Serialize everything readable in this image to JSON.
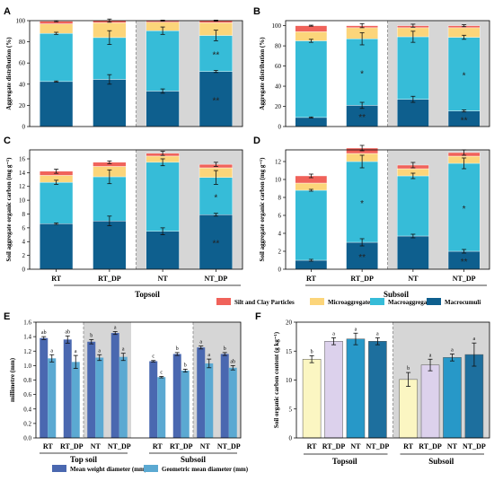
{
  "colors": {
    "silt_clay": "#f0625a",
    "micro": "#fcd57a",
    "macro": "#36bcd8",
    "macrocumuli": "#0e5f8e",
    "shade": "#d6d6d6",
    "mwd": "#4a68b0",
    "gmd": "#5ba9d2",
    "f_rt": "#fbf6c2",
    "f_rtdp": "#dcd1ec",
    "f_nt": "#2798c8",
    "f_ntdp": "#1d6f9e"
  },
  "legend": {
    "items": [
      "Silt and Clay Particles",
      "Microaggregates",
      "Macroaggregates",
      "Macrocumuli"
    ]
  },
  "chart_data": [
    {
      "panel": "A",
      "type": "bar",
      "stacked": true,
      "ylabel": "Aggregate distribution (%)",
      "ylim": [
        0,
        100
      ],
      "yticks": [
        "0",
        "20",
        "40",
        "60",
        "80",
        "100"
      ],
      "categories": [
        "RT",
        "RT_DP",
        "NT",
        "NT_DP"
      ],
      "series": [
        {
          "name": "Macrocumuli",
          "values": [
            42.5,
            44.5,
            33.5,
            52
          ]
        },
        {
          "name": "Macroaggregates",
          "values": [
            45.5,
            39.5,
            57,
            34
          ]
        },
        {
          "name": "Microaggregates",
          "values": [
            9,
            14,
            8,
            12
          ]
        },
        {
          "name": "Silt and Clay Particles",
          "values": [
            2.5,
            2,
            1.5,
            2
          ]
        }
      ],
      "error_tops": [
        {
          "series": "Macrocumuli",
          "err": [
            0.5,
            4.5,
            2.0,
            1.0
          ]
        },
        {
          "series": "Macroaggregates",
          "err": [
            1.0,
            6.5,
            3.5,
            5.0
          ]
        },
        {
          "series": "Silt and Clay Particles",
          "err": [
            0.5,
            1.5,
            0.5,
            0.5
          ]
        }
      ],
      "annotations": [
        {
          "category": "NT_DP",
          "series": "Macrocumuli",
          "text": "**"
        },
        {
          "category": "NT_DP",
          "series": "Macroaggregates",
          "text": "**"
        }
      ]
    },
    {
      "panel": "B",
      "type": "bar",
      "stacked": true,
      "ylabel": "Aggregate distribution (%)",
      "ylim": [
        0,
        105
      ],
      "yticks": [
        "0",
        "20",
        "40",
        "60",
        "80",
        "100"
      ],
      "categories": [
        "RT",
        "RT_DP",
        "NT",
        "NT_DP"
      ],
      "series": [
        {
          "name": "Macrocumuli",
          "values": [
            9,
            21,
            27,
            15.5
          ]
        },
        {
          "name": "Macroaggregates",
          "values": [
            76,
            66,
            62,
            73
          ]
        },
        {
          "name": "Microaggregates",
          "values": [
            9,
            11,
            9,
            9.5
          ]
        },
        {
          "name": "Silt and Clay Particles",
          "values": [
            6,
            2,
            2,
            2
          ]
        }
      ],
      "error_tops": [
        {
          "series": "Macrocumuli",
          "err": [
            0.5,
            3.0,
            3.0,
            1.0
          ]
        },
        {
          "series": "Macroaggregates",
          "err": [
            1.5,
            6.0,
            5.5,
            2.0
          ]
        },
        {
          "series": "Silt and Clay Particles",
          "err": [
            0.5,
            2.0,
            1.5,
            1.0
          ]
        }
      ],
      "annotations": [
        {
          "category": "RT_DP",
          "series": "Macrocumuli",
          "text": "**"
        },
        {
          "category": "RT_DP",
          "series": "Macroaggregates",
          "text": "*"
        },
        {
          "category": "NT_DP",
          "series": "Macrocumuli",
          "text": "**"
        },
        {
          "category": "NT_DP",
          "series": "Macroaggregates",
          "text": "*"
        }
      ]
    },
    {
      "panel": "C",
      "type": "bar",
      "stacked": true,
      "ylabel": "Soil aggregate organic carbon (mg g⁻¹)",
      "ylim": [
        0,
        17.3
      ],
      "yticks": [
        "0",
        "2",
        "4",
        "6",
        "8",
        "10",
        "12",
        "14",
        "16"
      ],
      "categories": [
        "RT",
        "RT_DP",
        "NT",
        "NT_DP"
      ],
      "series": [
        {
          "name": "Macrocumuli",
          "values": [
            6.6,
            7.0,
            5.5,
            7.9
          ]
        },
        {
          "name": "Macroaggregates",
          "values": [
            6.0,
            6.4,
            10.0,
            5.4
          ]
        },
        {
          "name": "Microaggregates",
          "values": [
            1.0,
            1.5,
            0.9,
            1.4
          ]
        },
        {
          "name": "Silt and Clay Particles",
          "values": [
            0.6,
            0.6,
            0.4,
            0.5
          ]
        }
      ],
      "error_tops": [
        {
          "series": "Macrocumuli",
          "err": [
            0.1,
            0.7,
            0.5,
            0.2
          ]
        },
        {
          "series": "Macroaggregates",
          "err": [
            0.3,
            1.0,
            0.5,
            1.0
          ]
        },
        {
          "series": "Silt and Clay Particles",
          "err": [
            0.3,
            0.2,
            0.3,
            0.3
          ]
        }
      ],
      "annotations": [
        {
          "category": "NT_DP",
          "series": "Macrocumuli",
          "text": "**"
        },
        {
          "category": "NT_DP",
          "series": "Macroaggregates",
          "text": "*"
        }
      ]
    },
    {
      "panel": "D",
      "type": "bar",
      "stacked": true,
      "ylabel": "Soil aggregate organic carbon (mg g⁻¹)",
      "ylim": [
        0,
        13.3
      ],
      "yticks": [
        "0",
        "2",
        "4",
        "6",
        "8",
        "10",
        "12"
      ],
      "categories": [
        "RT",
        "RT_DP",
        "NT",
        "NT_DP"
      ],
      "series": [
        {
          "name": "Macrocumuli",
          "values": [
            1.0,
            3.0,
            3.7,
            2.0
          ]
        },
        {
          "name": "Macroaggregates",
          "values": [
            7.8,
            9.0,
            6.7,
            9.8
          ]
        },
        {
          "name": "Microaggregates",
          "values": [
            0.8,
            0.9,
            0.8,
            0.8
          ]
        },
        {
          "name": "Silt and Clay Particles",
          "values": [
            0.8,
            0.6,
            0.4,
            0.4
          ]
        }
      ],
      "error_tops": [
        {
          "series": "Macrocumuli",
          "err": [
            0.1,
            0.4,
            0.2,
            0.2
          ]
        },
        {
          "series": "Macroaggregates",
          "err": [
            0.1,
            0.7,
            0.3,
            0.6
          ]
        },
        {
          "series": "Silt and Clay Particles",
          "err": [
            0.2,
            0.3,
            0.3,
            0.3
          ]
        }
      ],
      "annotations": [
        {
          "category": "RT_DP",
          "series": "Macrocumuli",
          "text": "**"
        },
        {
          "category": "RT_DP",
          "series": "Macroaggregates",
          "text": "*"
        },
        {
          "category": "NT_DP",
          "series": "Macrocumuli",
          "text": "**"
        },
        {
          "category": "NT_DP",
          "series": "Macroaggregates",
          "text": "*"
        }
      ]
    },
    {
      "panel": "E",
      "type": "bar",
      "grouped": true,
      "ylabel": "millimetre (mm)",
      "ylim": [
        0,
        1.6
      ],
      "yticks": [
        "0.0",
        "0.2",
        "0.4",
        "0.6",
        "0.8",
        "1.0",
        "1.2",
        "1.4",
        "1.6"
      ],
      "categories": [
        "RT",
        "RT_DP",
        "NT",
        "NT_DP",
        "RT",
        "RT_DP",
        "NT",
        "NT_DP"
      ],
      "groups": [
        "Top soil",
        "Subsoil"
      ],
      "series": [
        {
          "name": "Mean weight diameter (mm)",
          "values": [
            1.38,
            1.36,
            1.33,
            1.45,
            1.06,
            1.16,
            1.25,
            1.16
          ],
          "err": [
            0.02,
            0.05,
            0.03,
            0.02,
            0.01,
            0.02,
            0.02,
            0.02
          ],
          "letters": [
            "ab",
            "ab",
            "b",
            "a",
            "c",
            "b",
            "a",
            "b"
          ]
        },
        {
          "name": "Geometric mean diameter (mm)",
          "values": [
            1.1,
            1.05,
            1.11,
            1.12,
            0.84,
            0.93,
            1.03,
            0.97
          ],
          "err": [
            0.05,
            0.09,
            0.04,
            0.05,
            0.01,
            0.02,
            0.06,
            0.03
          ],
          "letters": [
            "a",
            "a",
            "a",
            "a",
            "c",
            "b",
            "a",
            "ab"
          ]
        }
      ]
    },
    {
      "panel": "F",
      "type": "bar",
      "ylabel": "Soil organic carbon content (g kg⁻¹)",
      "ylim": [
        0,
        20
      ],
      "yticks": [
        "0",
        "5",
        "10",
        "15",
        "20"
      ],
      "categories": [
        "RT",
        "RT_DP",
        "NT",
        "NT_DP",
        "RT",
        "RT_DP",
        "NT",
        "NT_DP"
      ],
      "groups": [
        "Topsoil",
        "Subsoil"
      ],
      "values": [
        13.6,
        16.7,
        17.1,
        16.7,
        10.1,
        12.6,
        13.9,
        14.4
      ],
      "err": [
        0.6,
        0.6,
        1.0,
        0.6,
        1.2,
        1.0,
        0.6,
        2.0
      ],
      "letters": [
        "b",
        "a",
        "a",
        "a",
        "b",
        "a",
        "a",
        "a"
      ]
    }
  ],
  "cd_labels": {
    "categories": [
      "RT",
      "RT_DP",
      "NT",
      "NT_DP"
    ],
    "groups": [
      "Topsoil",
      "Subsoil"
    ]
  },
  "e_legend": [
    "Mean weight diameter (mm)",
    "Geometric mean diameter (mm)"
  ]
}
